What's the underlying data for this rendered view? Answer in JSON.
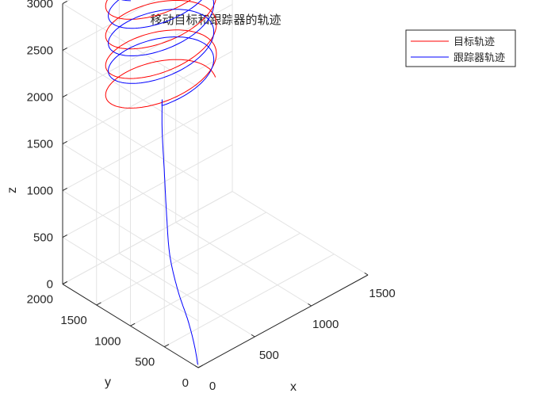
{
  "chart_data": {
    "type": "line",
    "title": "移动目标和跟踪器的轨迹",
    "xlabel": "x",
    "ylabel": "y",
    "zlabel": "z",
    "xlim": [
      0,
      1500
    ],
    "ylim": [
      0,
      2000
    ],
    "zlim": [
      0,
      3000
    ],
    "x_ticks": [
      "0",
      "500",
      "1000",
      "1500"
    ],
    "y_ticks": [
      "0",
      "500",
      "1000",
      "1500",
      "2000"
    ],
    "z_ticks": [
      "0",
      "500",
      "1000",
      "1500",
      "2000",
      "2500",
      "3000"
    ],
    "grid": true,
    "legend_position": "top-right",
    "series": [
      {
        "name": "目标轨迹",
        "color": "#ff0000",
        "helix": {
          "center_x": 600,
          "center_y": 1550,
          "radius": 420,
          "z_start": 1820,
          "z_end": 3150,
          "turns": 4.2,
          "phase_deg": -20
        }
      },
      {
        "name": "跟踪器轨迹",
        "color": "#0000ff",
        "path": [
          {
            "x": 20,
            "y": 40,
            "z": 0
          },
          {
            "x": 40,
            "y": 120,
            "z": 150
          },
          {
            "x": 60,
            "y": 250,
            "z": 350
          },
          {
            "x": 70,
            "y": 420,
            "z": 600
          },
          {
            "x": 120,
            "y": 620,
            "z": 850
          },
          {
            "x": 230,
            "y": 850,
            "z": 1100
          },
          {
            "x": 330,
            "y": 1050,
            "z": 1400
          },
          {
            "x": 430,
            "y": 1250,
            "z": 1700
          },
          {
            "x": 520,
            "y": 1400,
            "z": 1900
          }
        ],
        "helix": {
          "center_x": 600,
          "center_y": 1550,
          "radius": 400,
          "z_start": 2000,
          "z_end": 3150,
          "turns": 3.9,
          "phase_deg": -120
        }
      }
    ]
  }
}
